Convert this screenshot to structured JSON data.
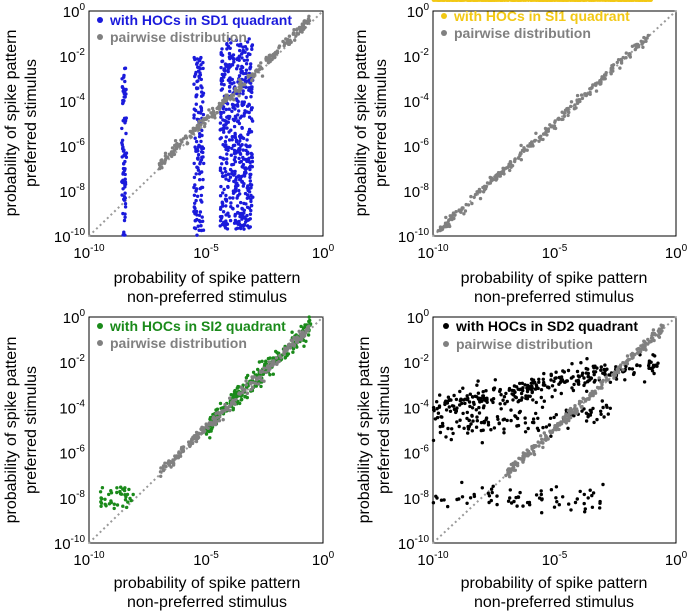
{
  "chart_data": [
    {
      "type": "scatter",
      "xscale": "log",
      "yscale": "log",
      "xlim": [
        1e-10,
        1
      ],
      "ylim": [
        1e-10,
        1
      ],
      "xticks": [
        "10-10",
        "10-5",
        "100"
      ],
      "yticks": [
        "10-10",
        "10-8",
        "10-6",
        "10-4",
        "10-2",
        "100"
      ],
      "xlabel": [
        "probability of spike pattern",
        "non-preferred stimulus"
      ],
      "ylabel": [
        "probability of spike pattern",
        "preferred stimulus"
      ],
      "legend_position": "top-left",
      "diagonal": "dotted y=x",
      "series": [
        {
          "name": "with HOCs in SD1 quadrant",
          "color": "#1a1adb",
          "clusters": [
            {
              "x_range": [
                2.5e-09,
                4e-09
              ],
              "y_range": [
                1e-10,
                0.003
              ],
              "n": 80
            },
            {
              "x_range": [
                3e-06,
                8e-06
              ],
              "y_range": [
                1e-10,
                0.01
              ],
              "n": 140
            },
            {
              "x_range": [
                4e-05,
                0.001
              ],
              "y_range": [
                2e-10,
                0.06
              ],
              "n": 520
            }
          ]
        },
        {
          "name": "pairwise distribution",
          "color": "#808080",
          "trend": {
            "x_range": [
              1e-07,
              0.3
            ],
            "ratio": 1.5,
            "n": 250
          }
        }
      ]
    },
    {
      "type": "scatter",
      "xscale": "log",
      "yscale": "log",
      "xlim": [
        1e-10,
        1
      ],
      "ylim": [
        1e-10,
        1
      ],
      "xticks": [
        "10-10",
        "10-5",
        "100"
      ],
      "yticks": [
        "10-10",
        "10-8",
        "10-6",
        "10-4",
        "10-2",
        "100"
      ],
      "xlabel": [
        "probability of spike pattern",
        "non-preferred stimulus"
      ],
      "ylabel": [
        "probability of spike pattern",
        "preferred stimulus"
      ],
      "legend_position": "top-left",
      "diagonal": "dotted y=x",
      "series": [
        {
          "name": "with HOCs in SI1 quadrant",
          "color": "#f2c814",
          "trend": {
            "x_range": [
              1e-10,
              0.1
            ],
            "spread_decades": 0.45,
            "n": 700
          }
        },
        {
          "name": "pairwise distribution",
          "color": "#808080",
          "trend": {
            "x_range": [
              1e-10,
              0.1
            ],
            "ratio": 1.0,
            "n": 250
          }
        }
      ]
    },
    {
      "type": "scatter",
      "xscale": "log",
      "yscale": "log",
      "xlim": [
        1e-10,
        1
      ],
      "ylim": [
        1e-10,
        1
      ],
      "xticks": [
        "10-10",
        "10-5",
        "100"
      ],
      "yticks": [
        "10-10",
        "10-8",
        "10-6",
        "10-4",
        "10-2",
        "100"
      ],
      "xlabel": [
        "probability of spike pattern",
        "non-preferred stimulus"
      ],
      "ylabel": [
        "probability of spike pattern",
        "preferred stimulus"
      ],
      "legend_position": "top-left",
      "diagonal": "dotted y=x",
      "series": [
        {
          "name": "with HOCs in SI2 quadrant",
          "color": "#1a8a1a",
          "clusters": [
            {
              "x_range": [
                3e-10,
                8e-09
              ],
              "y_range": [
                3e-09,
                3e-08
              ],
              "n": 40
            },
            {
              "x_range": [
                1e-05,
                0.3
              ],
              "spread_decades": 0.25,
              "n": 260
            }
          ]
        },
        {
          "name": "pairwise distribution",
          "color": "#808080",
          "trend": {
            "x_range": [
              1e-07,
              0.3
            ],
            "ratio": 1.2,
            "n": 250
          }
        }
      ]
    },
    {
      "type": "scatter",
      "xscale": "log",
      "yscale": "log",
      "xlim": [
        1e-10,
        1
      ],
      "ylim": [
        1e-10,
        1
      ],
      "xticks": [
        "10-10",
        "10-5",
        "100"
      ],
      "yticks": [
        "10-10",
        "10-8",
        "10-6",
        "10-4",
        "10-2",
        "100"
      ],
      "xlabel": [
        "probability of spike pattern",
        "non-preferred stimulus"
      ],
      "ylabel": [
        "probability of spike pattern",
        "preferred stimulus"
      ],
      "legend_position": "top-left",
      "diagonal": "dotted y=x",
      "series": [
        {
          "name": "with HOCs in SD2 quadrant",
          "color": "#000000",
          "clusters": [
            {
              "band_y_start": 0.0001,
              "band_y_end": 0.01,
              "x_range": [
                1e-10,
                0.2
              ],
              "n": 300
            },
            {
              "band_y_start": 8e-06,
              "band_y_end": 8e-05,
              "x_range": [
                1e-10,
                0.002
              ],
              "n": 110
            },
            {
              "band_y_start": 1e-08,
              "band_y_end": 1e-08,
              "x_range": [
                1e-10,
                0.001
              ],
              "n": 70
            }
          ]
        },
        {
          "name": "pairwise distribution",
          "color": "#808080",
          "trend": {
            "x_range": [
              1e-07,
              0.3
            ],
            "ratio": 1.1,
            "n": 250
          }
        }
      ]
    }
  ]
}
